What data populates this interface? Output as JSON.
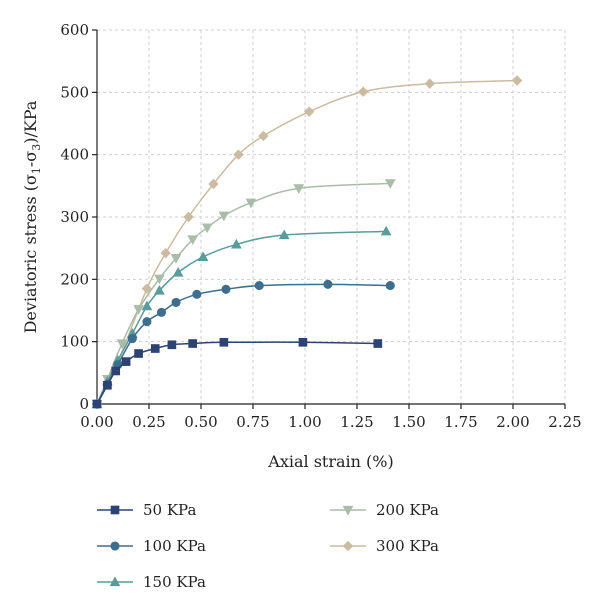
{
  "chart_data": {
    "type": "line",
    "xlabel": "Axial strain (%)",
    "ylabel": "Deviatoric stress (σ1-σ3)/KPa",
    "xlim": [
      0,
      2.25
    ],
    "ylim": [
      0,
      600
    ],
    "xticks": [
      "0.00",
      "0.25",
      "0.50",
      "0.75",
      "1.00",
      "1.25",
      "1.50",
      "1.75",
      "2.00",
      "2.25"
    ],
    "yticks": [
      "0",
      "100",
      "200",
      "300",
      "400",
      "500",
      "600"
    ],
    "grid": true,
    "legend_position": "bottom",
    "series": [
      {
        "name": "50 KPa",
        "color": "#2d4373",
        "marker": "square",
        "x": [
          0.0,
          0.05,
          0.09,
          0.14,
          0.2,
          0.28,
          0.36,
          0.46,
          0.61,
          0.99,
          1.35
        ],
        "y": [
          0,
          30,
          53,
          68,
          81,
          89,
          95,
          97,
          99,
          99,
          97
        ]
      },
      {
        "name": "100 KPa",
        "color": "#3e6e8e",
        "marker": "circle",
        "x": [
          0.0,
          0.05,
          0.1,
          0.17,
          0.24,
          0.31,
          0.38,
          0.48,
          0.62,
          0.78,
          1.11,
          1.41
        ],
        "y": [
          0,
          32,
          63,
          105,
          132,
          147,
          163,
          176,
          184,
          190,
          192,
          190
        ]
      },
      {
        "name": "150 KPa",
        "color": "#5a9b9b",
        "marker": "triangle-up",
        "x": [
          0.0,
          0.05,
          0.1,
          0.17,
          0.24,
          0.3,
          0.39,
          0.51,
          0.67,
          0.9,
          1.39
        ],
        "y": [
          0,
          36,
          70,
          113,
          157,
          182,
          211,
          236,
          256,
          271,
          277
        ]
      },
      {
        "name": "200 KPa",
        "color": "#a9bca9",
        "marker": "triangle-down",
        "x": [
          0.0,
          0.05,
          0.12,
          0.2,
          0.3,
          0.38,
          0.46,
          0.53,
          0.61,
          0.74,
          0.97,
          1.41
        ],
        "y": [
          0,
          40,
          97,
          152,
          201,
          234,
          264,
          283,
          302,
          323,
          346,
          354
        ]
      },
      {
        "name": "300 KPa",
        "color": "#cbbba0",
        "marker": "diamond",
        "x": [
          0.0,
          0.1,
          0.24,
          0.33,
          0.44,
          0.56,
          0.68,
          0.8,
          1.02,
          1.28,
          1.6,
          2.02
        ],
        "y": [
          0,
          67,
          185,
          242,
          300,
          353,
          400,
          430,
          469,
          501,
          514,
          519
        ]
      }
    ]
  }
}
